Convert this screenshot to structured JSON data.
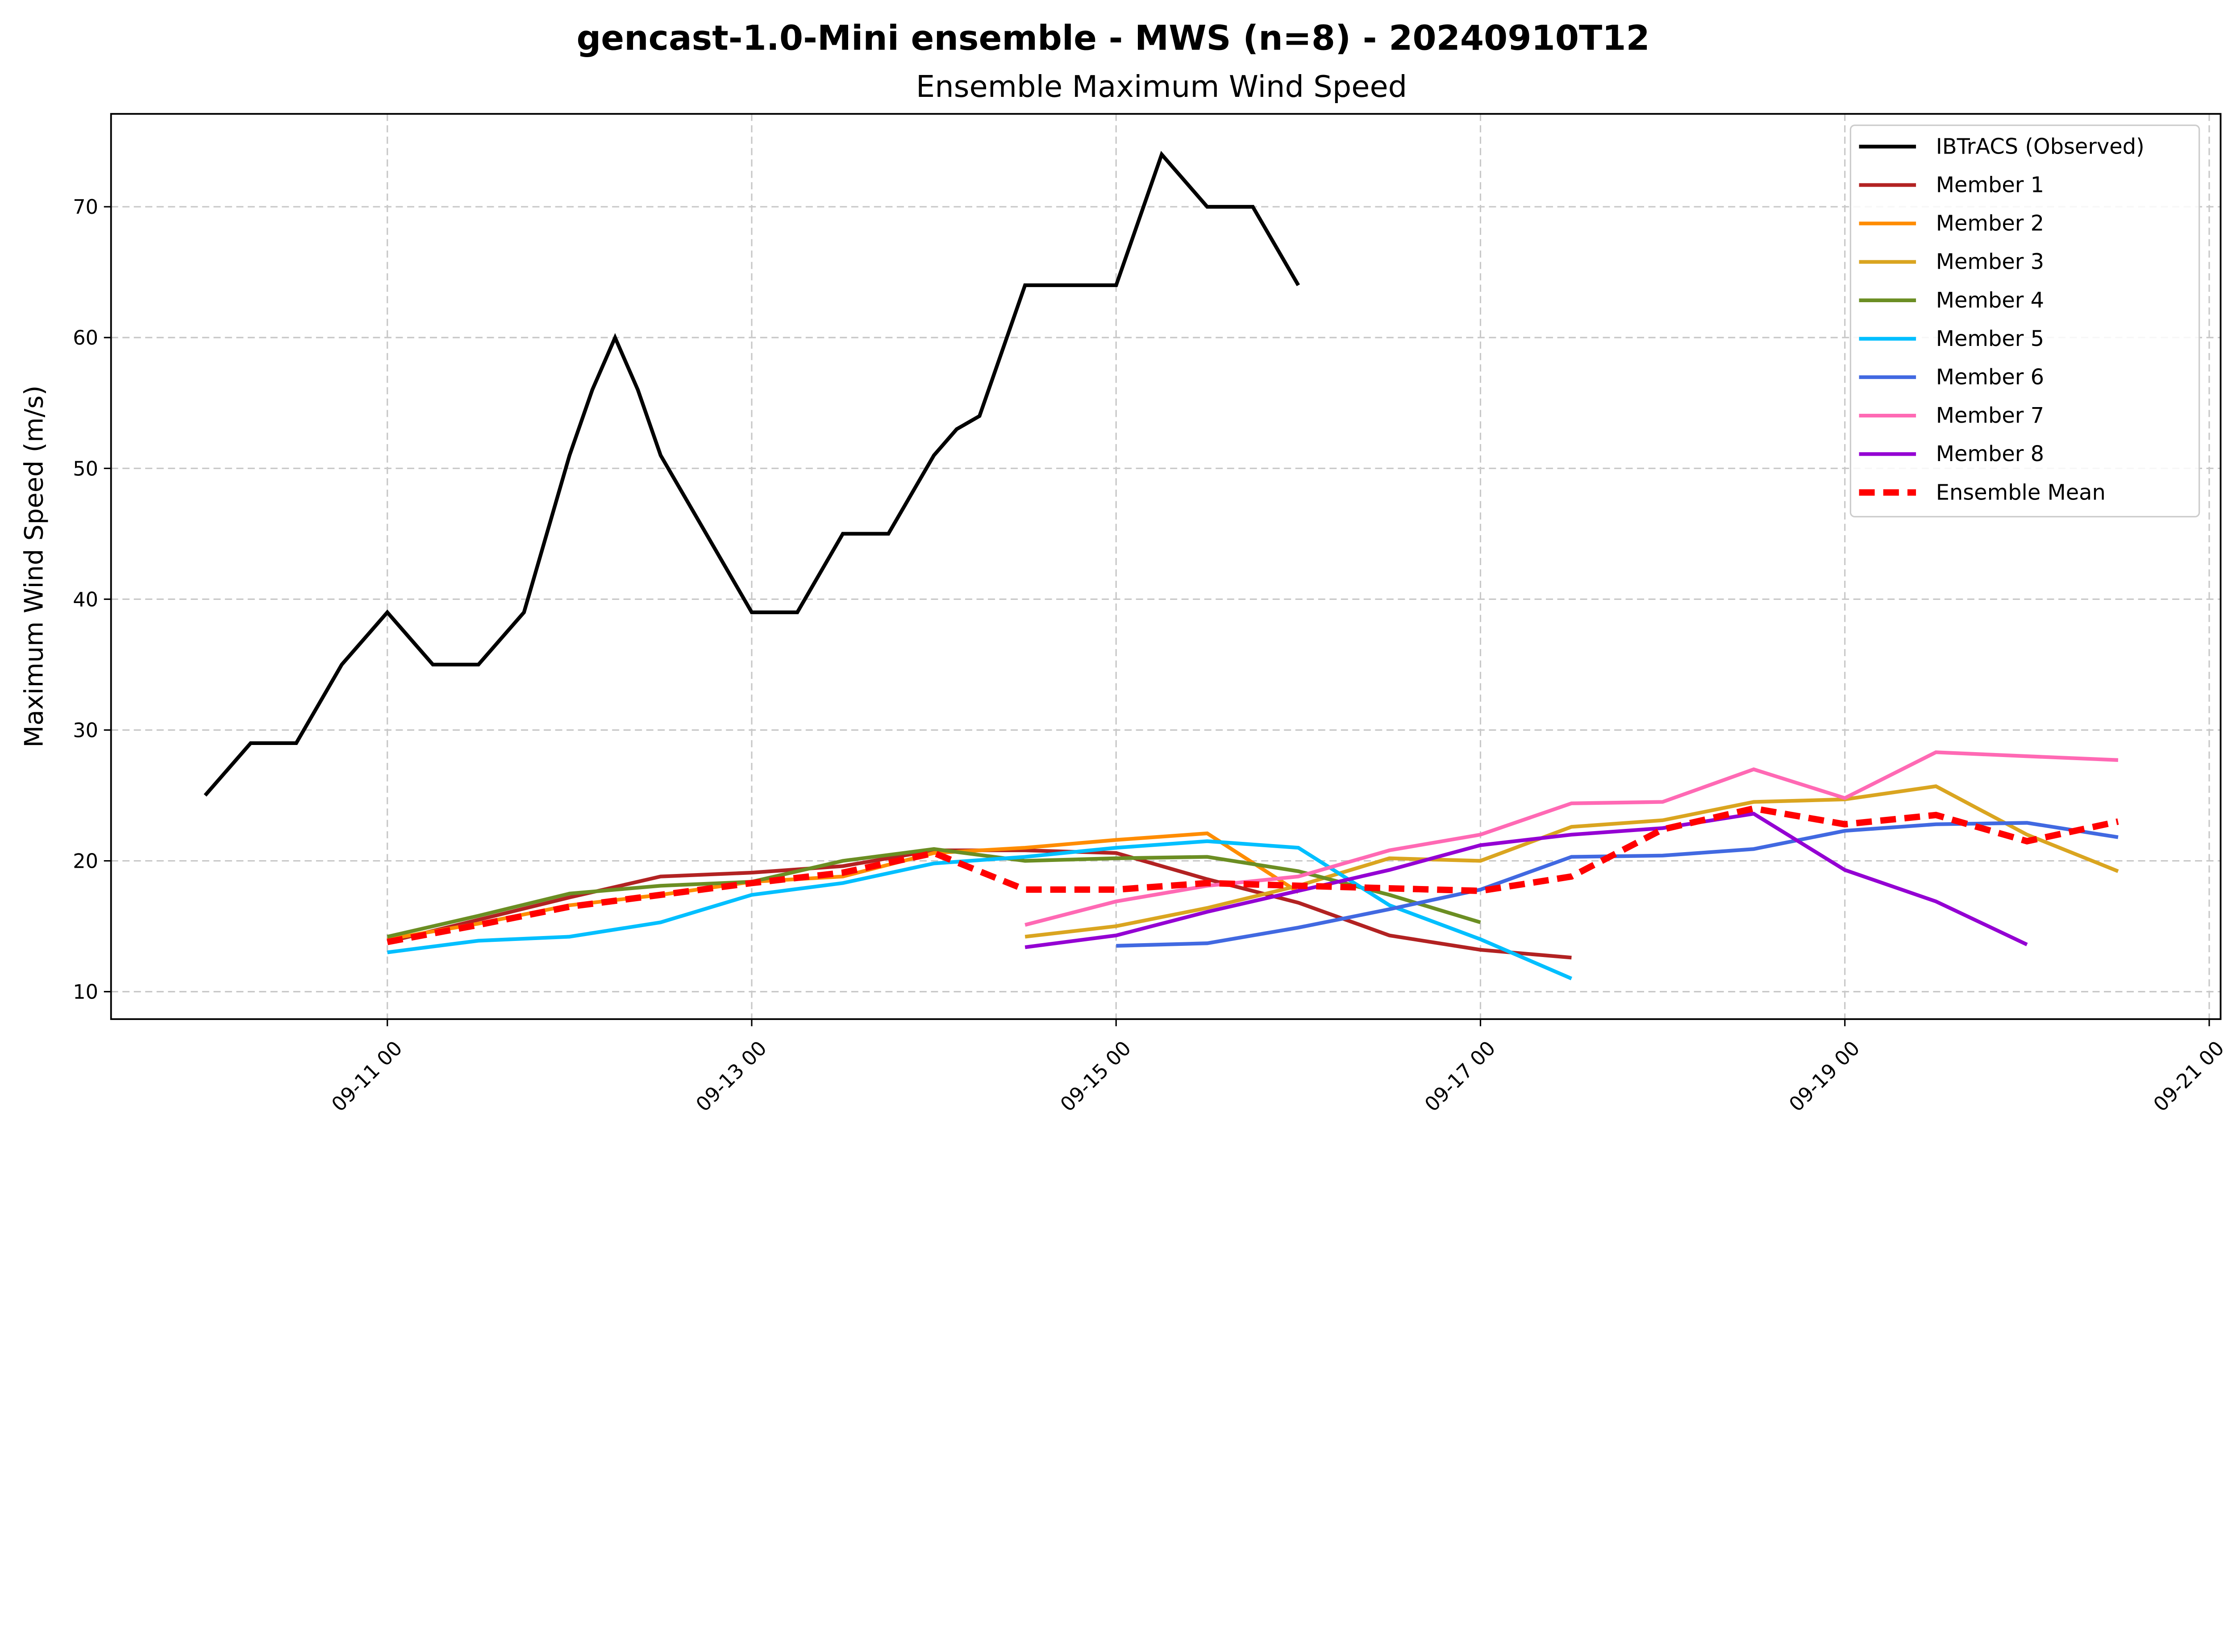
{
  "chart_data": {
    "type": "line",
    "title": "gencast-1.0-Mini ensemble - MWS (n=8) - 20240910T12",
    "subtitle": "Ensemble Maximum Wind Speed",
    "xlabel": "",
    "ylabel": "Maximum Wind Speed (m/s)",
    "xlim": [
      "2024-09-09 11:36",
      "2024-09-21 01:30"
    ],
    "ylim": [
      7.9,
      77.1
    ],
    "grid": true,
    "legend_placement": "top-right",
    "x_ticks": [
      {
        "value": "2024-09-11 00:00",
        "label": "09-11 00"
      },
      {
        "value": "2024-09-13 00:00",
        "label": "09-13 00"
      },
      {
        "value": "2024-09-15 00:00",
        "label": "09-15 00"
      },
      {
        "value": "2024-09-17 00:00",
        "label": "09-17 00"
      },
      {
        "value": "2024-09-19 00:00",
        "label": "09-19 00"
      },
      {
        "value": "2024-09-21 00:00",
        "label": "09-21 00"
      }
    ],
    "y_ticks": [
      {
        "value": 10,
        "label": "10"
      },
      {
        "value": 20,
        "label": "20"
      },
      {
        "value": 30,
        "label": "30"
      },
      {
        "value": 40,
        "label": "40"
      },
      {
        "value": 50,
        "label": "50"
      },
      {
        "value": 60,
        "label": "60"
      },
      {
        "value": 70,
        "label": "70"
      }
    ],
    "series": [
      {
        "name": "IBTrACS (Observed)",
        "color": "#000000",
        "style": "solid",
        "x": [
          "2024-09-10 00:00",
          "2024-09-10 06:00",
          "2024-09-10 12:00",
          "2024-09-10 18:00",
          "2024-09-11 00:00",
          "2024-09-11 06:00",
          "2024-09-11 12:00",
          "2024-09-11 18:00",
          "2024-09-12 00:00",
          "2024-09-12 03:00",
          "2024-09-12 06:00",
          "2024-09-12 09:00",
          "2024-09-12 12:00",
          "2024-09-12 18:00",
          "2024-09-13 00:00",
          "2024-09-13 06:00",
          "2024-09-13 12:00",
          "2024-09-13 18:00",
          "2024-09-14 00:00",
          "2024-09-14 03:00",
          "2024-09-14 06:00",
          "2024-09-14 12:00",
          "2024-09-14 18:00",
          "2024-09-15 00:00",
          "2024-09-15 06:00",
          "2024-09-15 12:00",
          "2024-09-15 18:00",
          "2024-09-16 00:00"
        ],
        "y": [
          25,
          29,
          29,
          35,
          39,
          35,
          35,
          39,
          51,
          56,
          60,
          56,
          51,
          45,
          39,
          39,
          45,
          45,
          51,
          53,
          54,
          64,
          64,
          64,
          74,
          70,
          70,
          64
        ]
      },
      {
        "name": "Member 1",
        "color": "#b22222",
        "style": "solid",
        "x": [
          "2024-09-11 00:00",
          "2024-09-11 12:00",
          "2024-09-12 00:00",
          "2024-09-12 12:00",
          "2024-09-13 00:00",
          "2024-09-13 12:00",
          "2024-09-14 00:00",
          "2024-09-14 12:00",
          "2024-09-15 00:00",
          "2024-09-15 12:00",
          "2024-09-16 00:00",
          "2024-09-16 12:00",
          "2024-09-17 00:00",
          "2024-09-17 12:00"
        ],
        "y": [
          13.8,
          15.5,
          17.2,
          18.8,
          19.1,
          19.6,
          20.8,
          20.8,
          20.6,
          18.6,
          16.8,
          14.3,
          13.2,
          12.6
        ]
      },
      {
        "name": "Member 2",
        "color": "#ff8c00",
        "style": "solid",
        "x": [
          "2024-09-11 00:00",
          "2024-09-11 12:00",
          "2024-09-12 00:00",
          "2024-09-12 12:00",
          "2024-09-13 00:00",
          "2024-09-13 12:00",
          "2024-09-14 00:00",
          "2024-09-14 12:00",
          "2024-09-15 00:00",
          "2024-09-15 12:00",
          "2024-09-16 00:00"
        ],
        "y": [
          14.0,
          15.2,
          16.6,
          17.4,
          18.4,
          18.8,
          20.6,
          21.0,
          21.6,
          22.1,
          17.6
        ]
      },
      {
        "name": "Member 3",
        "color": "#daa520",
        "style": "solid",
        "x": [
          "2024-09-14 12:00",
          "2024-09-15 00:00",
          "2024-09-15 12:00",
          "2024-09-16 00:00",
          "2024-09-16 12:00",
          "2024-09-17 00:00",
          "2024-09-17 12:00",
          "2024-09-18 00:00",
          "2024-09-18 12:00",
          "2024-09-19 00:00",
          "2024-09-19 12:00",
          "2024-09-20 00:00",
          "2024-09-20 12:00"
        ],
        "y": [
          14.2,
          15.0,
          16.4,
          18.1,
          20.2,
          20.0,
          22.6,
          23.1,
          24.5,
          24.7,
          25.7,
          22.0,
          19.2
        ]
      },
      {
        "name": "Member 4",
        "color": "#6b8e23",
        "style": "solid",
        "x": [
          "2024-09-11 00:00",
          "2024-09-11 12:00",
          "2024-09-12 00:00",
          "2024-09-12 12:00",
          "2024-09-13 00:00",
          "2024-09-13 12:00",
          "2024-09-14 00:00",
          "2024-09-14 12:00",
          "2024-09-15 00:00",
          "2024-09-15 12:00",
          "2024-09-16 00:00",
          "2024-09-16 12:00",
          "2024-09-17 00:00"
        ],
        "y": [
          14.2,
          15.8,
          17.5,
          18.1,
          18.4,
          20.0,
          20.9,
          20.0,
          20.2,
          20.3,
          19.2,
          17.4,
          15.3
        ]
      },
      {
        "name": "Member 5",
        "color": "#00bfff",
        "style": "solid",
        "x": [
          "2024-09-11 00:00",
          "2024-09-11 12:00",
          "2024-09-12 00:00",
          "2024-09-12 12:00",
          "2024-09-13 00:00",
          "2024-09-13 12:00",
          "2024-09-14 00:00",
          "2024-09-14 12:00",
          "2024-09-15 00:00",
          "2024-09-15 12:00",
          "2024-09-16 00:00",
          "2024-09-16 12:00",
          "2024-09-17 00:00",
          "2024-09-17 12:00"
        ],
        "y": [
          13.0,
          13.9,
          14.2,
          15.3,
          17.4,
          18.3,
          19.8,
          20.3,
          21.0,
          21.5,
          21.0,
          16.6,
          14.0,
          11.0
        ]
      },
      {
        "name": "Member 6",
        "color": "#4169e1",
        "style": "solid",
        "x": [
          "2024-09-15 00:00",
          "2024-09-15 12:00",
          "2024-09-16 00:00",
          "2024-09-16 12:00",
          "2024-09-17 00:00",
          "2024-09-17 12:00",
          "2024-09-18 00:00",
          "2024-09-18 12:00",
          "2024-09-19 00:00",
          "2024-09-19 12:00",
          "2024-09-20 00:00",
          "2024-09-20 12:00"
        ],
        "y": [
          13.5,
          13.7,
          14.9,
          16.3,
          17.8,
          20.3,
          20.4,
          20.9,
          22.3,
          22.8,
          22.9,
          21.8
        ]
      },
      {
        "name": "Member 7",
        "color": "#ff69b4",
        "style": "solid",
        "x": [
          "2024-09-14 12:00",
          "2024-09-15 00:00",
          "2024-09-15 12:00",
          "2024-09-16 00:00",
          "2024-09-16 12:00",
          "2024-09-17 00:00",
          "2024-09-17 12:00",
          "2024-09-18 00:00",
          "2024-09-18 12:00",
          "2024-09-19 00:00",
          "2024-09-19 12:00",
          "2024-09-20 00:00",
          "2024-09-20 12:00"
        ],
        "y": [
          15.1,
          16.9,
          18.1,
          18.8,
          20.8,
          22.0,
          24.4,
          24.5,
          27.0,
          24.8,
          28.3,
          28.0,
          27.7
        ]
      },
      {
        "name": "Member 8",
        "color": "#9400d3",
        "style": "solid",
        "x": [
          "2024-09-14 12:00",
          "2024-09-15 00:00",
          "2024-09-15 12:00",
          "2024-09-16 00:00",
          "2024-09-16 12:00",
          "2024-09-17 00:00",
          "2024-09-17 12:00",
          "2024-09-18 00:00",
          "2024-09-18 12:00",
          "2024-09-19 00:00",
          "2024-09-19 12:00",
          "2024-09-20 00:00"
        ],
        "y": [
          13.4,
          14.3,
          16.1,
          17.7,
          19.3,
          21.2,
          22.0,
          22.5,
          23.6,
          19.3,
          16.9,
          13.6
        ]
      },
      {
        "name": "Ensemble Mean",
        "color": "#ff0000",
        "style": "dashed",
        "x": [
          "2024-09-11 00:00",
          "2024-09-11 12:00",
          "2024-09-12 00:00",
          "2024-09-12 12:00",
          "2024-09-13 00:00",
          "2024-09-13 12:00",
          "2024-09-14 00:00",
          "2024-09-14 12:00",
          "2024-09-15 00:00",
          "2024-09-15 12:00",
          "2024-09-16 00:00",
          "2024-09-16 12:00",
          "2024-09-17 00:00",
          "2024-09-17 12:00",
          "2024-09-18 00:00",
          "2024-09-18 12:00",
          "2024-09-19 00:00",
          "2024-09-19 12:00",
          "2024-09-20 00:00",
          "2024-09-20 12:00"
        ],
        "y": [
          13.8,
          15.1,
          16.5,
          17.4,
          18.3,
          19.1,
          20.6,
          17.8,
          17.8,
          18.3,
          18.1,
          17.9,
          17.7,
          18.8,
          22.4,
          24.0,
          22.8,
          23.5,
          21.5,
          23.0
        ]
      }
    ]
  }
}
